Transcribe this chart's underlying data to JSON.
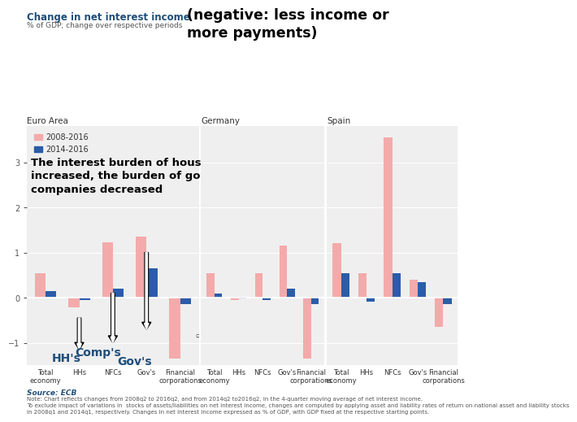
{
  "title_left": "Change in net interest income",
  "title_right": "(negative: less income or\nmore payments)",
  "subtitle": "% of GDP; change over respective periods",
  "annotation_text": "The interest burden of households\nincreased, the burden of gov's and\ncompanies decreased",
  "legend_labels": [
    "2008-2016",
    "2014-2016"
  ],
  "colors": [
    "#F4AAAA",
    "#2B5CA8"
  ],
  "source_text": "Source: ECB",
  "note_text": "Note: Chart reflects changes from 2008q2 to 2016q2, and from 2014q2 to2016q2, in the 4-quarter moving average of net interest income.\nTo exclude impact of variations in  stocks of assets/liabilities on net interest income, changes are computed by applying asset and liability rates of return on national asset and liability stocks\nin 2008q1 and 2014q1, respectively. Changes in net interest income expressed as % of GDP, with GDP fixed at the respective starting points.",
  "regions": [
    "Euro Area",
    "Germany",
    "Spain"
  ],
  "categories": [
    "Total\neconomy",
    "HHs",
    "NFCs",
    "Gov's",
    "Financial\ncorporations"
  ],
  "ylim": [
    -1.5,
    3.8
  ],
  "yticks": [
    -1,
    0,
    1,
    2,
    3
  ],
  "data": {
    "Euro Area": {
      "pink": [
        0.55,
        -0.22,
        1.22,
        1.35,
        -1.35
      ],
      "blue": [
        0.15,
        -0.05,
        0.2,
        0.65,
        -0.15
      ]
    },
    "Germany": {
      "pink": [
        0.55,
        -0.05,
        0.55,
        1.15,
        -1.35
      ],
      "blue": [
        0.1,
        -0.02,
        -0.05,
        0.2,
        -0.15
      ]
    },
    "Spain": {
      "pink": [
        1.2,
        0.55,
        3.55,
        0.4,
        -0.65
      ],
      "blue": [
        0.55,
        -0.08,
        0.55,
        0.35,
        -0.15
      ]
    }
  },
  "background_color": "#EFEFEF"
}
